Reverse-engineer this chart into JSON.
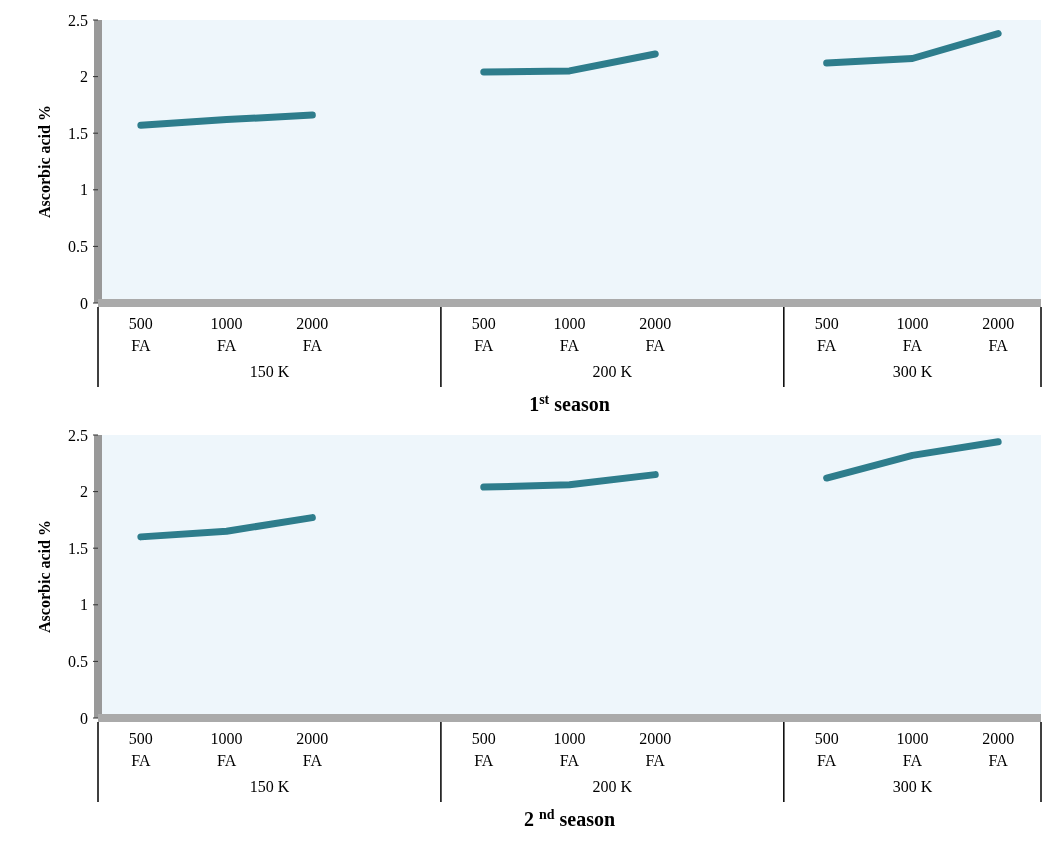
{
  "chart_data": [
    {
      "type": "line",
      "xlabel": "1$^{st}$ season",
      "ylabel": "Ascorbic acid %",
      "categories": [
        "500 FA",
        "1000 FA",
        "2000 FA",
        null,
        "500 FA",
        "1000 FA",
        "2000 FA",
        null,
        "500 FA",
        "1000 FA",
        "2000 FA"
      ],
      "series": [
        {
          "color": "#2e7d8c",
          "values": [
            1.57,
            1.62,
            1.66,
            null,
            2.04,
            2.05,
            2.2,
            null,
            2.12,
            2.16,
            2.38
          ]
        }
      ],
      "ylim": [
        0,
        2.5
      ],
      "yticks": [
        0,
        0.5,
        1,
        1.5,
        2,
        2.5
      ],
      "annotations": [
        "150 K",
        "200 K",
        "300 K"
      ]
    },
    {
      "type": "line",
      "xlabel": "2 $^{nd}$ season",
      "ylabel": "Ascorbic acid %",
      "categories": [
        "500 FA",
        "1000 FA",
        "2000 FA",
        null,
        "500 FA",
        "1000 FA",
        "2000 FA",
        null,
        "500 FA",
        "1000 FA",
        "2000 FA"
      ],
      "series": [
        {
          "color": "#2e7d8c",
          "values": [
            1.6,
            1.65,
            1.77,
            null,
            2.04,
            2.06,
            2.15,
            null,
            2.12,
            2.32,
            2.44
          ]
        }
      ],
      "ylim": [
        0,
        2.5
      ],
      "yticks": [
        0,
        0.5,
        1,
        1.5,
        2,
        2.5
      ],
      "annotations": [
        "150 K",
        "200 K",
        "300 K"
      ]
    }
  ]
}
